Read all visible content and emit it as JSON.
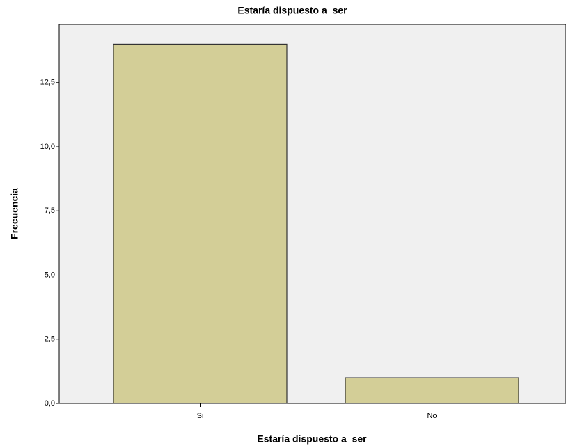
{
  "chart_data": {
    "type": "bar",
    "title": "Estaría dispuesto a  ser",
    "x_label": "Estaría dispuesto a  ser",
    "y_label": "Frecuencia",
    "categories": [
      "Si",
      "No"
    ],
    "values": [
      14,
      1
    ],
    "color": "#d3ce97",
    "ylim": [
      0,
      14.77
    ],
    "yticks": [
      {
        "value": 0,
        "label": "0,0"
      },
      {
        "value": 2.5,
        "label": "2,5"
      },
      {
        "value": 5,
        "label": "5,0"
      },
      {
        "value": 7.5,
        "label": "7,5"
      },
      {
        "value": 10,
        "label": "10,0"
      },
      {
        "value": 12.5,
        "label": "12,5"
      }
    ]
  }
}
